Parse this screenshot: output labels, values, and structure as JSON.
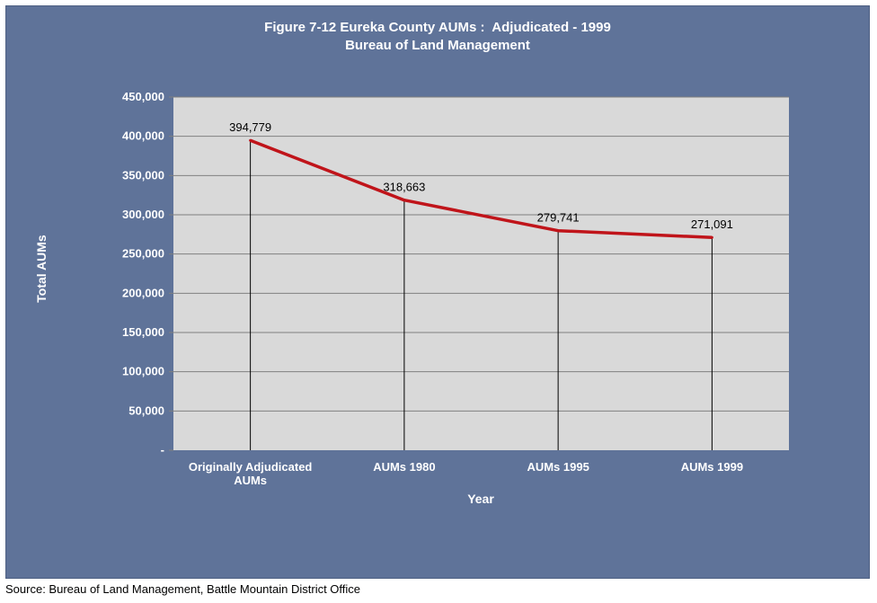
{
  "chart_data": {
    "type": "line",
    "title": "Figure 7-12 Eureka County AUMs :  Adjudicated - 1999",
    "subtitle": "Bureau of Land Management",
    "categories": [
      [
        "Originally Adjudicated",
        "AUMs"
      ],
      [
        "AUMs 1980"
      ],
      [
        "AUMs 1995"
      ],
      [
        "AUMs 1999"
      ]
    ],
    "values": [
      394779,
      318663,
      279741,
      271091
    ],
    "data_labels": [
      "394,779",
      "318,663",
      "279,741",
      "271,091"
    ],
    "xlabel": "Year",
    "ylabel": "Total AUMs",
    "ylim": [
      0,
      450000
    ],
    "yticks": [
      0,
      50000,
      100000,
      150000,
      200000,
      250000,
      300000,
      350000,
      400000,
      450000
    ],
    "ytick_labels": [
      "-",
      "50,000",
      "100,000",
      "150,000",
      "200,000",
      "250,000",
      "300,000",
      "350,000",
      "400,000",
      "450,000"
    ],
    "grid": true,
    "drop_lines": true,
    "line_color": "#c0141a",
    "plot_background": "#d9d9d9",
    "panel_background": "#5f7399"
  },
  "source": "Source: Bureau of Land Management, Battle Mountain District Office"
}
